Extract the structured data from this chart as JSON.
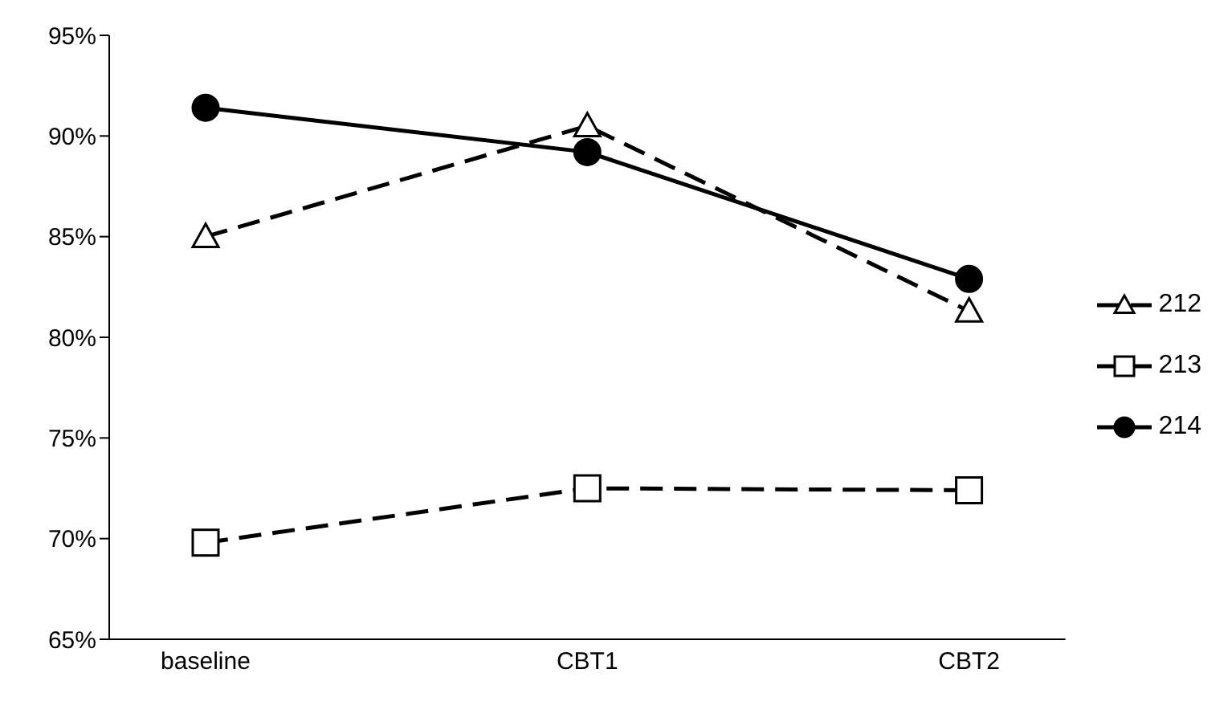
{
  "chart_data": {
    "type": "line",
    "categories": [
      "baseline",
      "CBT1",
      "CBT2"
    ],
    "series": [
      {
        "name": "212",
        "color": "#000000",
        "values": [
          85.0,
          90.5,
          81.3
        ],
        "marker": "triangle",
        "line_style": "dashed"
      },
      {
        "name": "213",
        "color": "#000000",
        "values": [
          69.8,
          72.5,
          72.4
        ],
        "marker": "square",
        "line_style": "dashed"
      },
      {
        "name": "214",
        "color": "#000000",
        "values": [
          91.4,
          89.2,
          82.9
        ],
        "marker": "circle",
        "line_style": "solid"
      }
    ],
    "ylim": [
      65,
      95
    ],
    "yticks": [
      {
        "value": 65,
        "label": "65%"
      },
      {
        "value": 70,
        "label": "70%"
      },
      {
        "value": 75,
        "label": "75%"
      },
      {
        "value": 80,
        "label": "80%"
      },
      {
        "value": 85,
        "label": "85%"
      },
      {
        "value": 90,
        "label": "90%"
      },
      {
        "value": 95,
        "label": "95%"
      }
    ],
    "grid": false,
    "legend": "right"
  }
}
